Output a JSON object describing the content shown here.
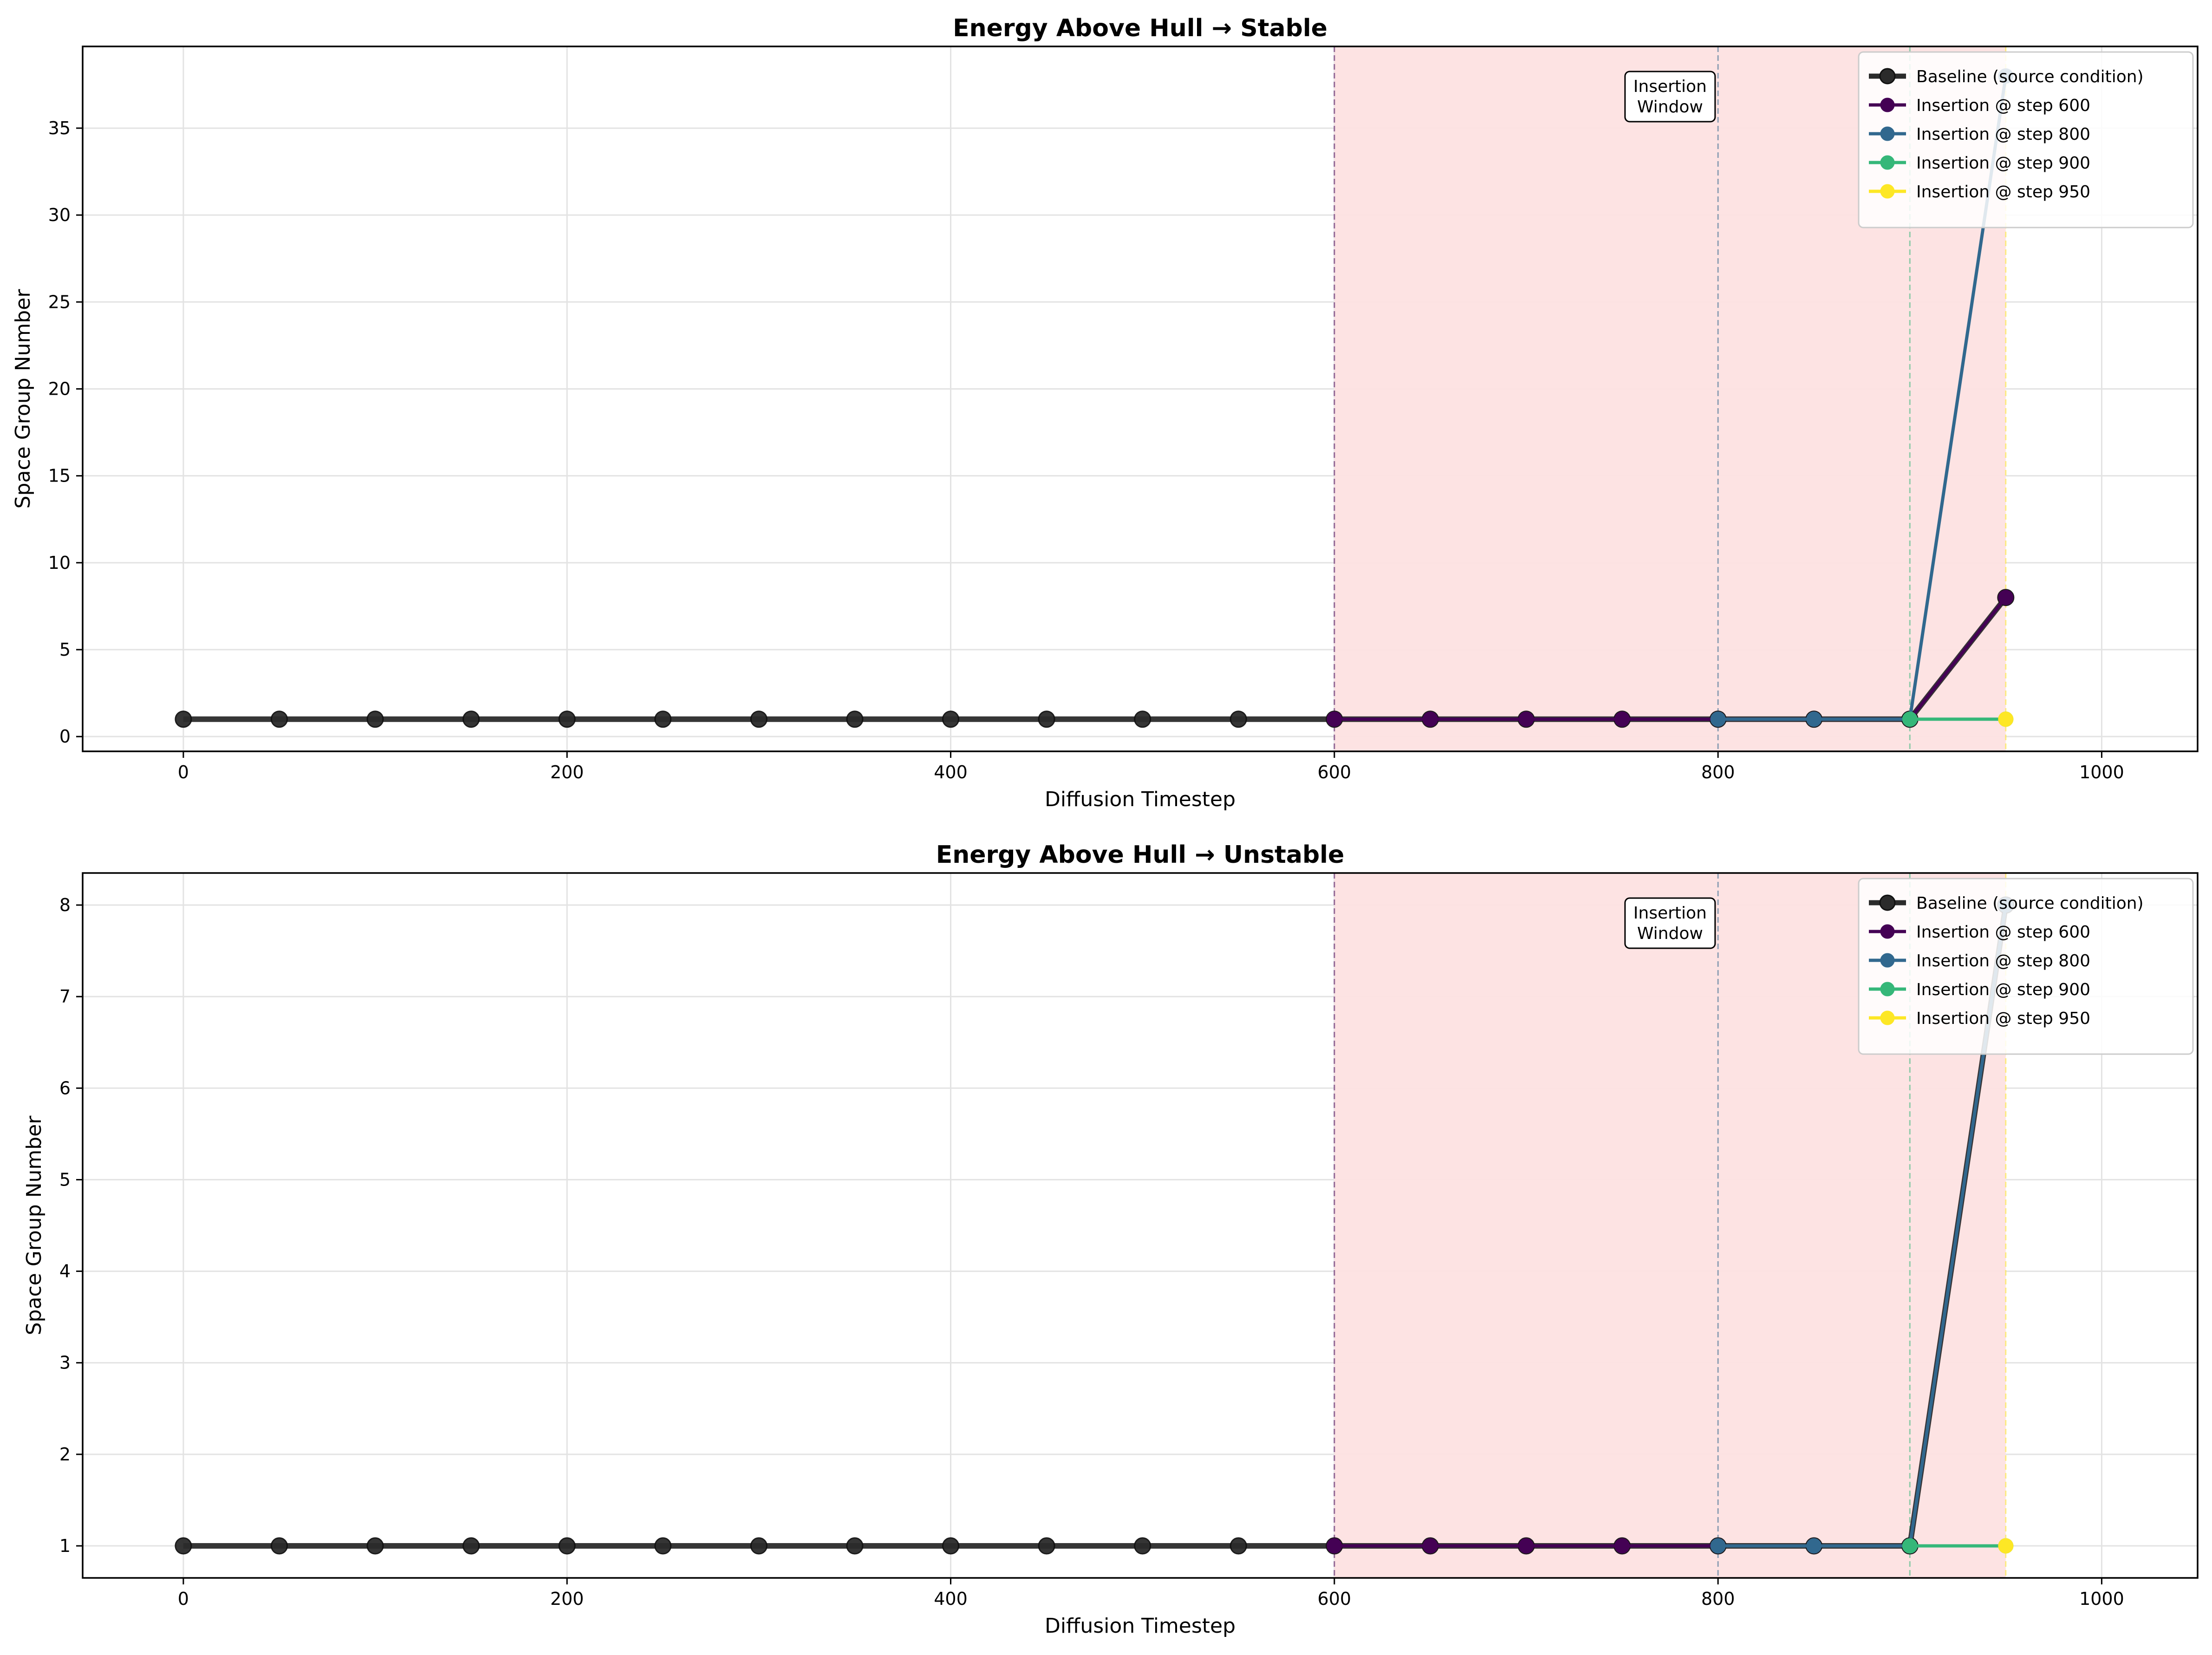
{
  "chart_data": [
    {
      "type": "line",
      "title": "Energy Above Hull → Stable",
      "xlabel": "Diffusion Timestep",
      "ylabel": "Space Group Number",
      "xlim": [
        -52.5,
        1050
      ],
      "ylim": [
        -0.85,
        39.7
      ],
      "xticks": [
        0,
        200,
        400,
        600,
        800,
        1000
      ],
      "yticks": [
        0,
        5,
        10,
        15,
        20,
        25,
        30,
        35
      ],
      "grid": true,
      "legend_position": "top-right",
      "insertion_window": [
        600,
        950
      ],
      "insertion_window_color": "#fde2e2",
      "annotation": "Insertion\nWindow",
      "insertion_markers": [
        600,
        800,
        900,
        950
      ],
      "series": [
        {
          "name": "Baseline (source condition)",
          "color": "#2b2b2b",
          "x": [
            0,
            50,
            100,
            150,
            200,
            250,
            300,
            350,
            400,
            450,
            500,
            550,
            600,
            650,
            700,
            750,
            800,
            850,
            900,
            950
          ],
          "y": [
            1,
            1,
            1,
            1,
            1,
            1,
            1,
            1,
            1,
            1,
            1,
            1,
            1,
            1,
            1,
            1,
            1,
            1,
            1,
            8
          ]
        },
        {
          "name": "Insertion @ step 600",
          "color": "#440154",
          "x": [
            600,
            650,
            700,
            750,
            800,
            850,
            900,
            950
          ],
          "y": [
            1,
            1,
            1,
            1,
            1,
            1,
            1,
            8
          ]
        },
        {
          "name": "Insertion @ step 800",
          "color": "#31688e",
          "x": [
            800,
            850,
            900,
            950
          ],
          "y": [
            1,
            1,
            1,
            38
          ]
        },
        {
          "name": "Insertion @ step 900",
          "color": "#35b779",
          "x": [
            900,
            950
          ],
          "y": [
            1,
            1
          ]
        },
        {
          "name": "Insertion @ step 950",
          "color": "#fde725",
          "x": [
            950
          ],
          "y": [
            1
          ]
        }
      ]
    },
    {
      "type": "line",
      "title": "Energy Above Hull → Unstable",
      "xlabel": "Diffusion Timestep",
      "ylabel": "Space Group Number",
      "xlim": [
        -52.5,
        1050
      ],
      "ylim": [
        0.65,
        8.35
      ],
      "xticks": [
        0,
        200,
        400,
        600,
        800,
        1000
      ],
      "yticks": [
        1,
        2,
        3,
        4,
        5,
        6,
        7,
        8
      ],
      "grid": true,
      "legend_position": "top-right",
      "insertion_window": [
        600,
        950
      ],
      "insertion_window_color": "#fde2e2",
      "annotation": "Insertion\nWindow",
      "insertion_markers": [
        600,
        800,
        900,
        950
      ],
      "series": [
        {
          "name": "Baseline (source condition)",
          "color": "#2b2b2b",
          "x": [
            0,
            50,
            100,
            150,
            200,
            250,
            300,
            350,
            400,
            450,
            500,
            550,
            600,
            650,
            700,
            750,
            800,
            850,
            900,
            950
          ],
          "y": [
            1,
            1,
            1,
            1,
            1,
            1,
            1,
            1,
            1,
            1,
            1,
            1,
            1,
            1,
            1,
            1,
            1,
            1,
            1,
            8
          ]
        },
        {
          "name": "Insertion @ step 600",
          "color": "#440154",
          "x": [
            600,
            650,
            700,
            750,
            800,
            850,
            900,
            950
          ],
          "y": [
            1,
            1,
            1,
            1,
            1,
            1,
            1,
            8
          ]
        },
        {
          "name": "Insertion @ step 800",
          "color": "#31688e",
          "x": [
            800,
            850,
            900,
            950
          ],
          "y": [
            1,
            1,
            1,
            8
          ]
        },
        {
          "name": "Insertion @ step 900",
          "color": "#35b779",
          "x": [
            900,
            950
          ],
          "y": [
            1,
            1
          ]
        },
        {
          "name": "Insertion @ step 950",
          "color": "#fde725",
          "x": [
            950
          ],
          "y": [
            1
          ]
        }
      ]
    }
  ]
}
